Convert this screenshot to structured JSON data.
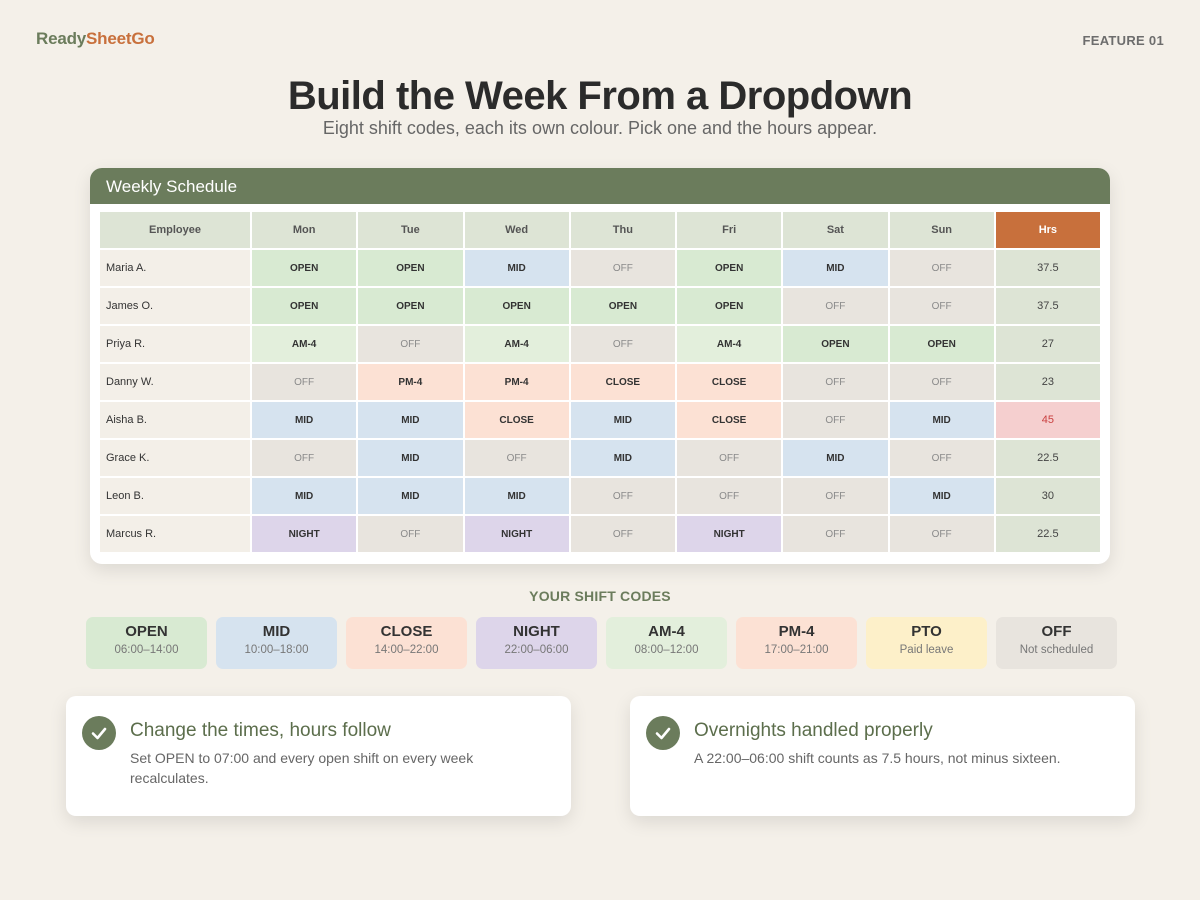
{
  "brand": {
    "part1": "Ready",
    "part2": "SheetGo"
  },
  "feature_label": "FEATURE 01",
  "title": "Build the Week From a Dropdown",
  "subtitle": "Eight shift codes, each its own colour. Pick one and the hours appear.",
  "schedule": {
    "title": "Weekly Schedule",
    "headers": [
      "Employee",
      "Mon",
      "Tue",
      "Wed",
      "Thu",
      "Fri",
      "Sat",
      "Sun",
      "Hrs"
    ],
    "rows": [
      {
        "name": "Maria A.",
        "shifts": [
          "OPEN",
          "OPEN",
          "MID",
          "OFF",
          "OPEN",
          "MID",
          "OFF"
        ],
        "hours": "37.5"
      },
      {
        "name": "James O.",
        "shifts": [
          "OPEN",
          "OPEN",
          "OPEN",
          "OPEN",
          "OPEN",
          "OFF",
          "OFF"
        ],
        "hours": "37.5"
      },
      {
        "name": "Priya R.",
        "shifts": [
          "AM-4",
          "OFF",
          "AM-4",
          "OFF",
          "AM-4",
          "OPEN",
          "OPEN"
        ],
        "hours": "27"
      },
      {
        "name": "Danny W.",
        "shifts": [
          "OFF",
          "PM-4",
          "PM-4",
          "CLOSE",
          "CLOSE",
          "OFF",
          "OFF"
        ],
        "hours": "23"
      },
      {
        "name": "Aisha B.",
        "shifts": [
          "MID",
          "MID",
          "CLOSE",
          "MID",
          "CLOSE",
          "OFF",
          "MID"
        ],
        "hours": "45",
        "over": true
      },
      {
        "name": "Grace K.",
        "shifts": [
          "OFF",
          "MID",
          "OFF",
          "MID",
          "OFF",
          "MID",
          "OFF"
        ],
        "hours": "22.5"
      },
      {
        "name": "Leon B.",
        "shifts": [
          "MID",
          "MID",
          "MID",
          "OFF",
          "OFF",
          "OFF",
          "MID"
        ],
        "hours": "30"
      },
      {
        "name": "Marcus R.",
        "shifts": [
          "NIGHT",
          "OFF",
          "NIGHT",
          "OFF",
          "NIGHT",
          "OFF",
          "OFF"
        ],
        "hours": "22.5"
      }
    ]
  },
  "codes_title": "YOUR SHIFT CODES",
  "codes": [
    {
      "code": "OPEN",
      "time": "06:00–14:00",
      "color": "#d8ead2"
    },
    {
      "code": "MID",
      "time": "10:00–18:00",
      "color": "#d6e3ef"
    },
    {
      "code": "CLOSE",
      "time": "14:00–22:00",
      "color": "#fce1d4"
    },
    {
      "code": "NIGHT",
      "time": "22:00–06:00",
      "color": "#ddd5ea"
    },
    {
      "code": "AM-4",
      "time": "08:00–12:00",
      "color": "#e3efdc"
    },
    {
      "code": "PM-4",
      "time": "17:00–21:00",
      "color": "#fce1d4"
    },
    {
      "code": "PTO",
      "time": "Paid leave",
      "color": "#fdf0c9"
    },
    {
      "code": "OFF",
      "time": "Not scheduled",
      "color": "#e8e4de"
    }
  ],
  "notes": [
    {
      "title": "Change the times, hours follow",
      "body": "Set OPEN to 07:00 and every open shift on every week recalculates.",
      "icon": "check-icon"
    },
    {
      "title": "Overnights handled properly",
      "body": "A 22:00–06:00 shift counts as 7.5 hours, not minus sixteen.",
      "icon": "check-icon"
    }
  ],
  "colors": {
    "accent": "#6b7c5c",
    "brand_orange": "#c8703c",
    "over_hours": "#c94040"
  }
}
